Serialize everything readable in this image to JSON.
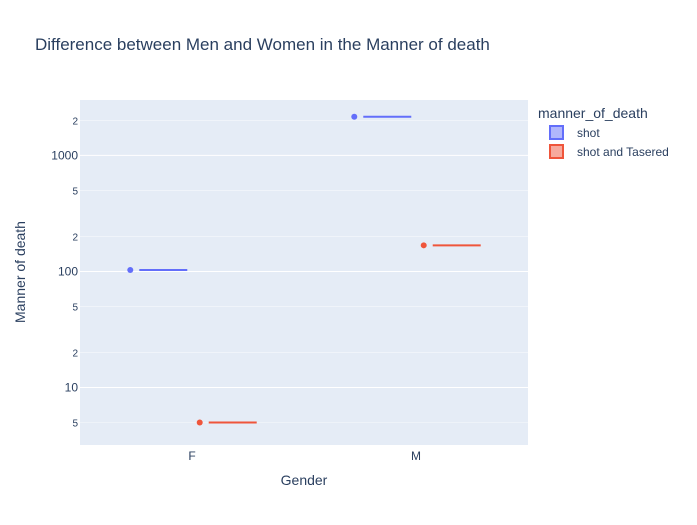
{
  "chart_data": {
    "type": "box",
    "title": "Difference between Men and Women in the Manner of death",
    "xlabel": "Gender",
    "ylabel": "Manner of death",
    "categories": [
      "F",
      "M"
    ],
    "yscale": "log",
    "ylim": [
      3.2,
      3000
    ],
    "y_major_ticks": [
      {
        "value": 10,
        "label": "10"
      },
      {
        "value": 100,
        "label": "100"
      },
      {
        "value": 1000,
        "label": "1000"
      }
    ],
    "y_minor_ticks": [
      {
        "value": 5,
        "label": "5"
      },
      {
        "value": 20,
        "label": "2"
      },
      {
        "value": 50,
        "label": "5"
      },
      {
        "value": 200,
        "label": "2"
      },
      {
        "value": 500,
        "label": "5"
      },
      {
        "value": 2000,
        "label": "2"
      }
    ],
    "legend_title": "manner_of_death",
    "legend_position": "right",
    "grid": true,
    "series": [
      {
        "name": "shot",
        "color": "#636efa",
        "values": [
          103,
          2150
        ]
      },
      {
        "name": "shot and Tasered",
        "color": "#ef553b",
        "values": [
          5,
          168
        ]
      }
    ]
  }
}
